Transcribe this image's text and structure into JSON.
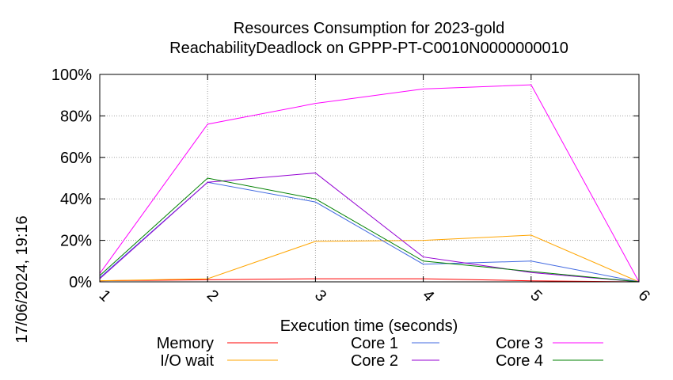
{
  "chart_data": {
    "type": "line",
    "title": "Resources Consumption for 2023-gold",
    "subtitle": "ReachabilityDeadlock on GPPP-PT-C0010N0000000010",
    "xlabel": "Execution time (seconds)",
    "ylabel": "",
    "side_label": "17/06/2024, 19:16",
    "x": [
      1,
      2,
      3,
      4,
      5,
      6
    ],
    "xlim": [
      1,
      6
    ],
    "ylim": [
      0,
      100
    ],
    "x_ticks": [
      "1",
      "2",
      "3",
      "4",
      "5",
      "6"
    ],
    "y_ticks": [
      "0%",
      "20%",
      "40%",
      "60%",
      "80%",
      "100%"
    ],
    "grid": true,
    "legend_position": "bottom",
    "series": [
      {
        "name": "Memory",
        "color": "#ff0000",
        "values": [
          0.5,
          1,
          1.5,
          1.5,
          0.5,
          0
        ]
      },
      {
        "name": "I/O wait",
        "color": "#ffa500",
        "values": [
          0.5,
          1.5,
          19.5,
          20,
          22.5,
          0
        ]
      },
      {
        "name": "Core 1",
        "color": "#4169e1",
        "values": [
          2,
          48,
          38.5,
          8.5,
          10,
          0
        ]
      },
      {
        "name": "Core 2",
        "color": "#9400d3",
        "values": [
          1.5,
          48,
          52.5,
          12,
          4.5,
          0
        ]
      },
      {
        "name": "Core 3",
        "color": "#ff00ff",
        "values": [
          4,
          76,
          86,
          93,
          95,
          0
        ]
      },
      {
        "name": "Core 4",
        "color": "#008000",
        "values": [
          3,
          50,
          40,
          10,
          5,
          0
        ]
      }
    ]
  }
}
